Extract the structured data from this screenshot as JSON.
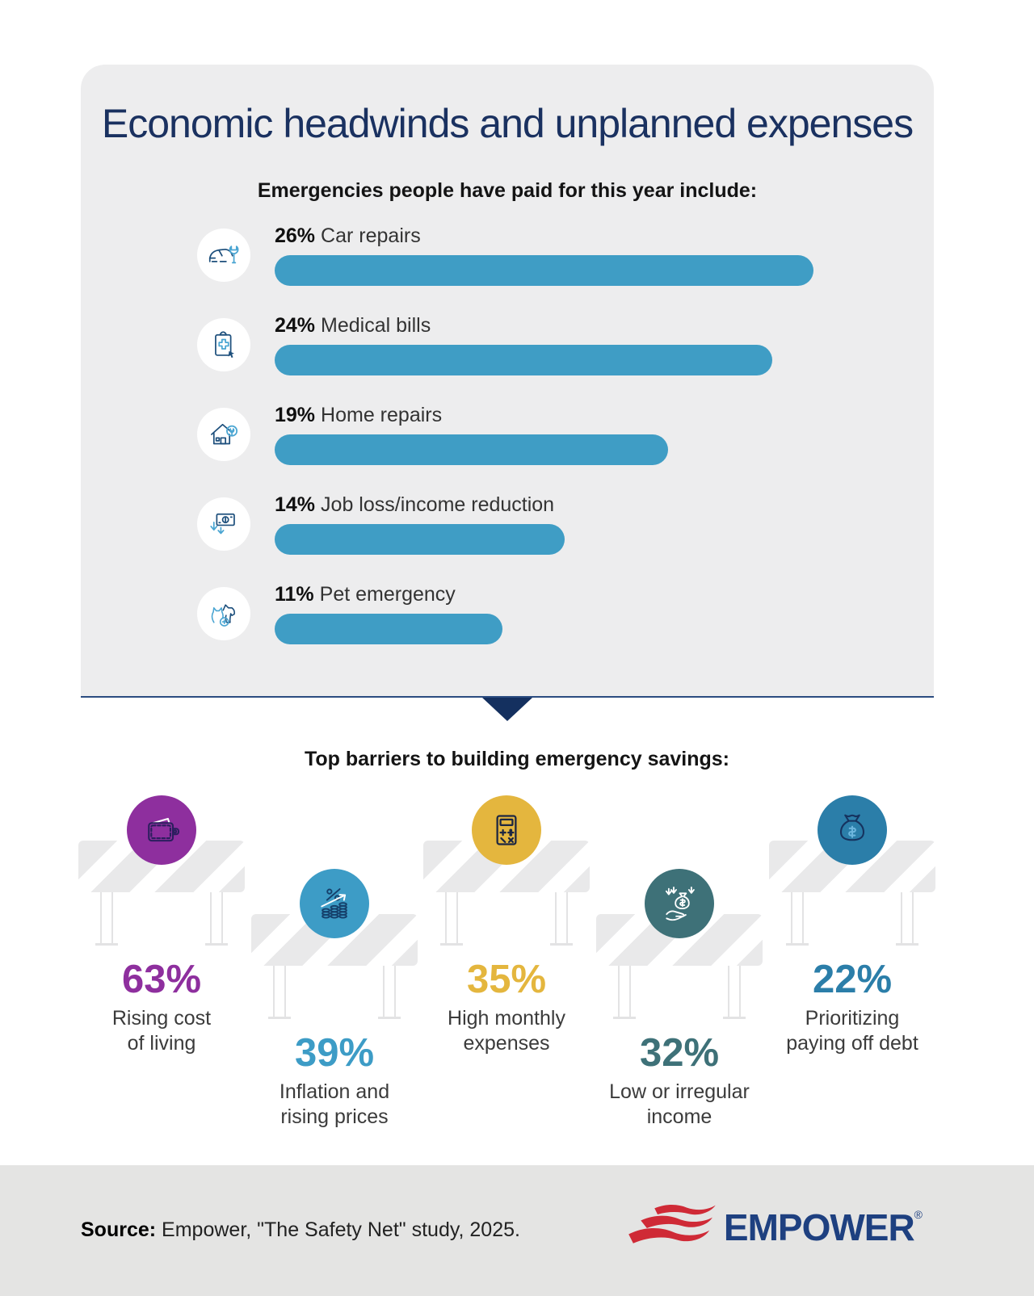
{
  "header": {
    "title": "Economic headwinds and unplanned expenses"
  },
  "emergencies": {
    "heading": "Emergencies people have paid for this year include:",
    "bar_color": "#3f9dc5",
    "items": [
      {
        "pct": "26%",
        "value": 26,
        "label": "Car repairs",
        "icon": "car-repair-icon"
      },
      {
        "pct": "24%",
        "value": 24,
        "label": "Medical bills",
        "icon": "medical-bills-icon"
      },
      {
        "pct": "19%",
        "value": 19,
        "label": "Home repairs",
        "icon": "home-repairs-icon"
      },
      {
        "pct": "14%",
        "value": 14,
        "label": "Job loss/income reduction",
        "icon": "job-loss-icon"
      },
      {
        "pct": "11%",
        "value": 11,
        "label": "Pet emergency",
        "icon": "pet-emergency-icon"
      }
    ]
  },
  "barriers": {
    "heading": "Top barriers to building emergency savings:",
    "items": [
      {
        "pct": "63%",
        "value": 63,
        "lines": [
          "Rising cost",
          "of living"
        ],
        "color": "#8e2f9e",
        "icon": "wallet-icon"
      },
      {
        "pct": "39%",
        "value": 39,
        "lines": [
          "Inflation and",
          "rising prices"
        ],
        "color": "#3d9cc6",
        "icon": "percent-up-icon"
      },
      {
        "pct": "35%",
        "value": 35,
        "lines": [
          "High monthly",
          "expenses"
        ],
        "color": "#e4b63e",
        "icon": "calculator-icon"
      },
      {
        "pct": "32%",
        "value": 32,
        "lines": [
          "Low or irregular",
          "income"
        ],
        "color": "#3e7178",
        "icon": "hand-moneybag-icon"
      },
      {
        "pct": "22%",
        "value": 22,
        "lines": [
          "Prioritizing",
          "paying off debt"
        ],
        "color": "#2b7ea9",
        "icon": "moneybag-icon"
      }
    ]
  },
  "footer": {
    "source_label": "Source:",
    "source_text": "Empower, \"The Safety Net\" study, 2025.",
    "logo_text": "EMPOWER",
    "logo_reg": "®"
  },
  "colors": {
    "card_bg": "#ededee",
    "title_navy": "#1a3160",
    "bar_blue": "#3f9dc5",
    "arrow_navy": "#14305f",
    "footer_bg": "#e4e4e3",
    "logo_red": "#cf2a36",
    "logo_navy": "#1e4080"
  },
  "chart_data": [
    {
      "type": "bar",
      "orientation": "horizontal",
      "title": "Emergencies people have paid for this year include:",
      "categories": [
        "Car repairs",
        "Medical bills",
        "Home repairs",
        "Job loss/income reduction",
        "Pet emergency"
      ],
      "values": [
        26,
        24,
        19,
        14,
        11
      ],
      "unit": "%",
      "xlim": [
        0,
        26
      ],
      "bar_color": "#3f9dc5",
      "grid": false,
      "legend": false
    },
    {
      "type": "pictogram",
      "title": "Top barriers to building emergency savings:",
      "categories": [
        "Rising cost of living",
        "Inflation and rising prices",
        "High monthly expenses",
        "Low or irregular income",
        "Prioritizing paying off debt"
      ],
      "values": [
        63,
        39,
        35,
        32,
        22
      ],
      "unit": "%",
      "colors": [
        "#8e2f9e",
        "#3d9cc6",
        "#e4b63e",
        "#3e7178",
        "#2b7ea9"
      ]
    }
  ]
}
